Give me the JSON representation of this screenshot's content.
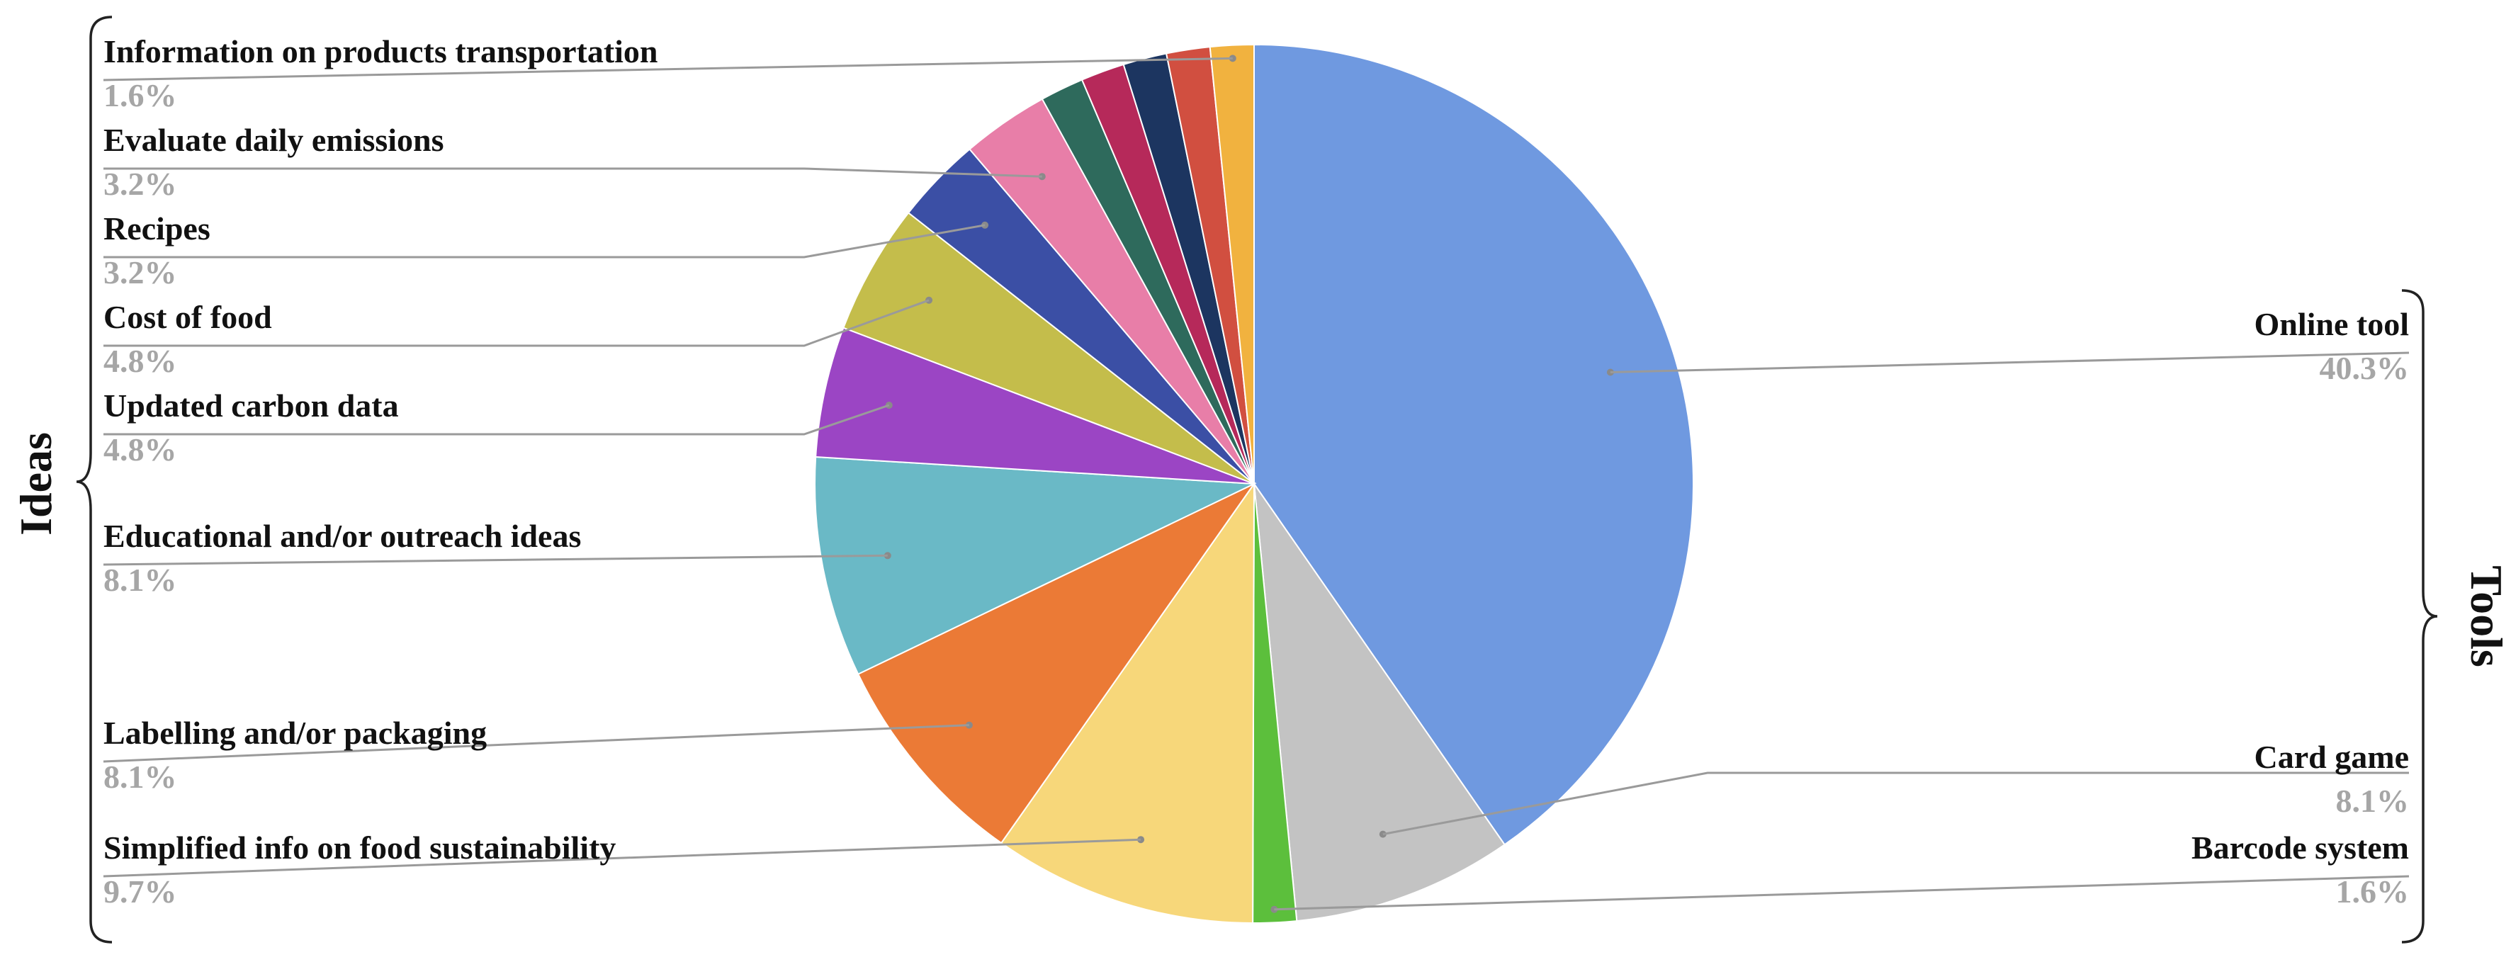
{
  "chart_data": {
    "type": "pie",
    "start_angle_deg": 0,
    "direction": "clockwise",
    "slices": [
      {
        "label": "Online tool",
        "pct_label": "40.3%",
        "value": 40.3,
        "color": "#6f99e0",
        "group": "Tools"
      },
      {
        "label": "Card game",
        "pct_label": "8.1%",
        "value": 8.1,
        "color": "#c3c3c3",
        "group": "Tools"
      },
      {
        "label": "Barcode system",
        "pct_label": "1.6%",
        "value": 1.6,
        "color": "#5cbf3c",
        "group": "Tools"
      },
      {
        "label": "Simplified info on food sustainability",
        "pct_label": "9.7%",
        "value": 9.7,
        "color": "#f7d77a",
        "group": "Ideas"
      },
      {
        "label": "Labelling and/or packaging",
        "pct_label": "8.1%",
        "value": 8.1,
        "color": "#eb7a36",
        "group": "Ideas"
      },
      {
        "label": "Educational and/or outreach ideas",
        "pct_label": "8.1%",
        "value": 8.1,
        "color": "#6ab9c6",
        "group": "Ideas"
      },
      {
        "label": "Updated carbon data",
        "pct_label": "4.8%",
        "value": 4.8,
        "color": "#9b45c4",
        "group": "Ideas"
      },
      {
        "label": "Cost of food",
        "pct_label": "4.8%",
        "value": 4.8,
        "color": "#c4bd4b",
        "group": "Ideas"
      },
      {
        "label": "Recipes",
        "pct_label": "3.2%",
        "value": 3.2,
        "color": "#3b4fa5",
        "group": "Ideas"
      },
      {
        "label": "Evaluate daily emissions",
        "pct_label": "3.2%",
        "value": 3.2,
        "color": "#e87ea8",
        "group": "Ideas"
      },
      {
        "label": "",
        "pct_label": "",
        "value": 1.6,
        "color": "#2e6a5c",
        "group": "Ideas"
      },
      {
        "label": "",
        "pct_label": "",
        "value": 1.6,
        "color": "#b6295a",
        "group": "Ideas"
      },
      {
        "label": "",
        "pct_label": "",
        "value": 1.6,
        "color": "#1c3560",
        "group": "Ideas"
      },
      {
        "label": "",
        "pct_label": "",
        "value": 1.6,
        "color": "#d14f40",
        "group": "Ideas"
      },
      {
        "label": "Information on products transportation",
        "pct_label": "1.6%",
        "value": 1.6,
        "color": "#f1b23f",
        "group": "Ideas"
      }
    ],
    "groups": [
      {
        "name": "Ideas",
        "side": "left"
      },
      {
        "name": "Tools",
        "side": "right"
      }
    ]
  }
}
